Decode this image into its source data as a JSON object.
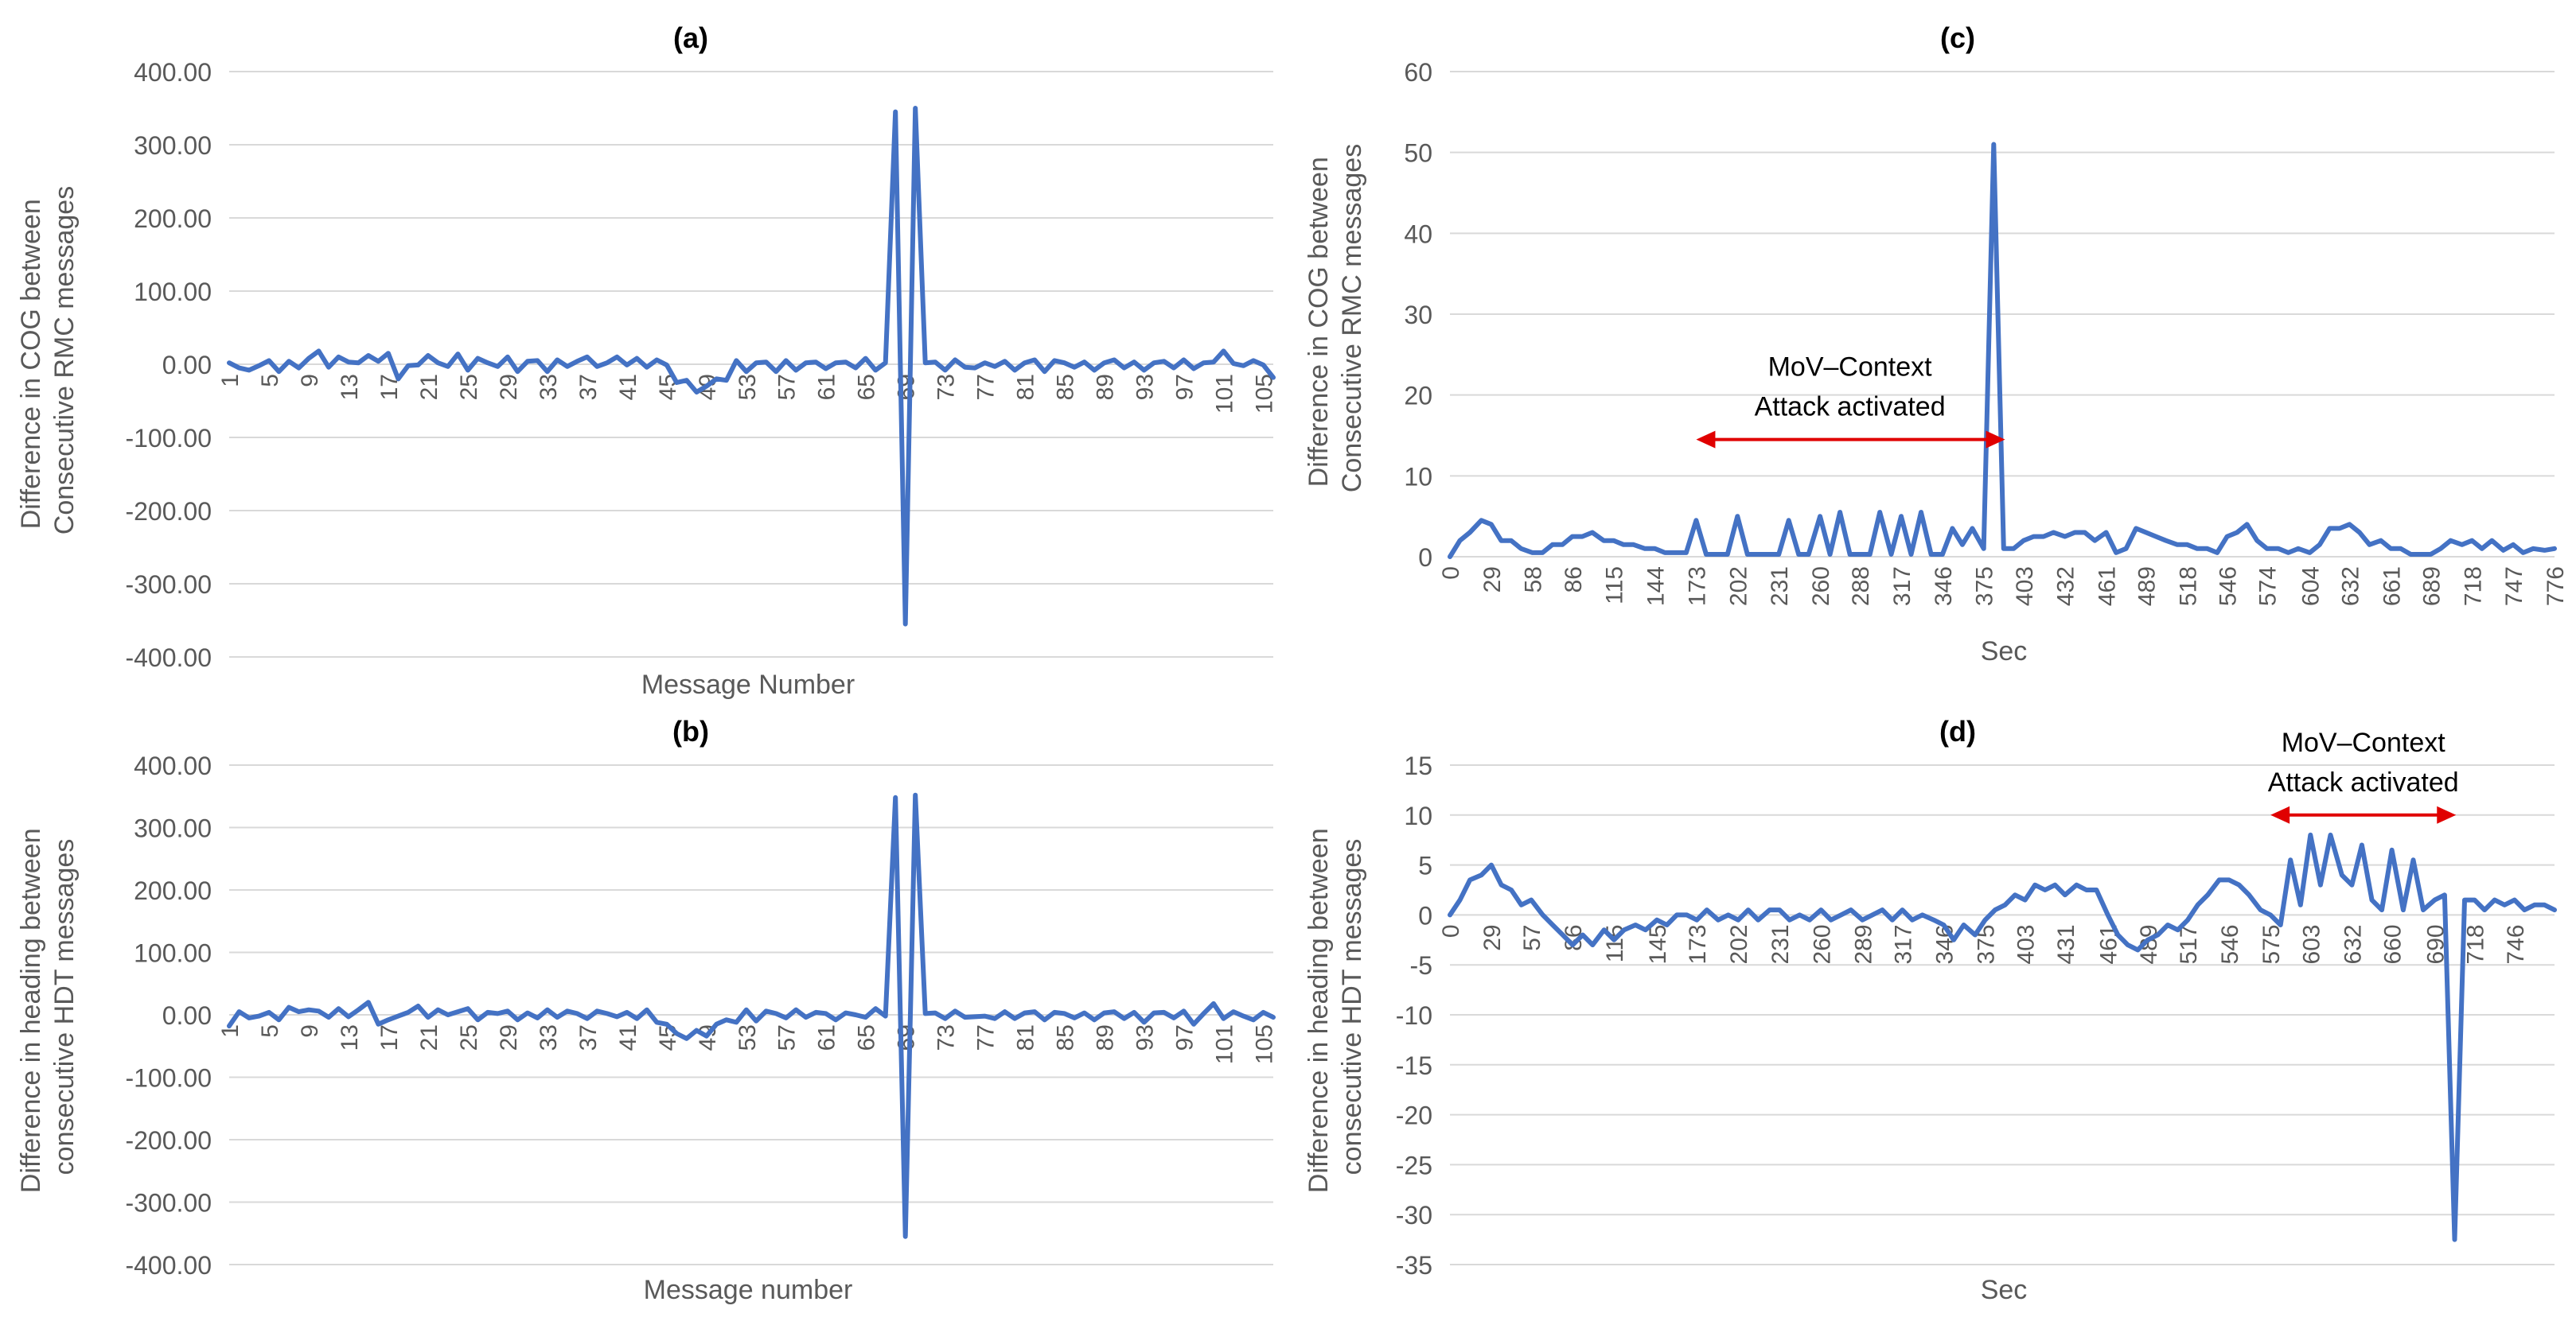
{
  "colors": {
    "series": "#4472C4",
    "grid": "#d9d9d9",
    "arrow": "#e00000",
    "text": "#595959"
  },
  "chart_data": [
    {
      "id": "a",
      "type": "line",
      "title": "(a)",
      "xlabel": "Message Number",
      "ylabel_lines": [
        "Difference in COG between",
        "Consecutive RMC messages"
      ],
      "ylim": [
        -400,
        400
      ],
      "yticks": [
        "400.00",
        "300.00",
        "200.00",
        "100.00",
        "0.00",
        "-100.00",
        "-200.00",
        "-300.00",
        "-400.00"
      ],
      "xticks": [
        "1",
        "5",
        "9",
        "13",
        "17",
        "21",
        "25",
        "29",
        "33",
        "37",
        "41",
        "45",
        "49",
        "53",
        "57",
        "61",
        "65",
        "69",
        "73",
        "77",
        "81",
        "85",
        "89",
        "93",
        "97",
        "101",
        "105"
      ],
      "x": [
        1,
        2,
        3,
        4,
        5,
        6,
        7,
        8,
        9,
        10,
        11,
        12,
        13,
        14,
        15,
        16,
        17,
        18,
        19,
        20,
        21,
        22,
        23,
        24,
        25,
        26,
        27,
        28,
        29,
        30,
        31,
        32,
        33,
        34,
        35,
        36,
        37,
        38,
        39,
        40,
        41,
        42,
        43,
        44,
        45,
        46,
        47,
        48,
        49,
        50,
        51,
        52,
        53,
        54,
        55,
        56,
        57,
        58,
        59,
        60,
        61,
        62,
        63,
        64,
        65,
        66,
        67,
        68,
        69,
        70,
        71,
        72,
        73,
        74,
        75,
        76,
        77,
        78,
        79,
        80,
        81,
        82,
        83,
        84,
        85,
        86,
        87,
        88,
        89,
        90,
        91,
        92,
        93,
        94,
        95,
        96,
        97,
        98,
        99,
        100,
        101,
        102,
        103,
        104,
        105,
        106
      ],
      "values": [
        2,
        -5,
        -8,
        -2,
        5,
        -10,
        4,
        -5,
        8,
        18,
        -4,
        10,
        3,
        2,
        12,
        4,
        15,
        -20,
        -2,
        -1,
        12,
        2,
        -3,
        14,
        -8,
        8,
        2,
        -3,
        10,
        -10,
        4,
        5,
        -10,
        6,
        -3,
        4,
        10,
        -3,
        2,
        10,
        -1,
        8,
        -4,
        6,
        -1,
        -25,
        -22,
        -38,
        -30,
        -20,
        -22,
        5,
        -10,
        2,
        3,
        -10,
        5,
        -8,
        2,
        3,
        -6,
        2,
        3,
        -5,
        8,
        -8,
        2,
        345,
        -355,
        350,
        2,
        3,
        -8,
        6,
        -4,
        -5,
        2,
        -3,
        4,
        -8,
        2,
        6,
        -10,
        5,
        2,
        -4,
        3,
        -8,
        2,
        6,
        -5,
        3,
        -8,
        2,
        4,
        -5,
        6,
        -6,
        2,
        3,
        18,
        1,
        -2,
        5,
        -1,
        -18
      ]
    },
    {
      "id": "b",
      "type": "line",
      "title": "(b)",
      "xlabel": "Message number",
      "ylabel_lines": [
        "Difference in heading between",
        "consecutive HDT messages"
      ],
      "ylim": [
        -400,
        400
      ],
      "yticks": [
        "400.00",
        "300.00",
        "200.00",
        "100.00",
        "0.00",
        "-100.00",
        "-200.00",
        "-300.00",
        "-400.00"
      ],
      "xticks": [
        "1",
        "5",
        "9",
        "13",
        "17",
        "21",
        "25",
        "29",
        "33",
        "37",
        "41",
        "45",
        "49",
        "53",
        "57",
        "61",
        "65",
        "69",
        "73",
        "77",
        "81",
        "85",
        "89",
        "93",
        "97",
        "101",
        "105"
      ],
      "x": [
        1,
        2,
        3,
        4,
        5,
        6,
        7,
        8,
        9,
        10,
        11,
        12,
        13,
        14,
        15,
        16,
        17,
        18,
        19,
        20,
        21,
        22,
        23,
        24,
        25,
        26,
        27,
        28,
        29,
        30,
        31,
        32,
        33,
        34,
        35,
        36,
        37,
        38,
        39,
        40,
        41,
        42,
        43,
        44,
        45,
        46,
        47,
        48,
        49,
        50,
        51,
        52,
        53,
        54,
        55,
        56,
        57,
        58,
        59,
        60,
        61,
        62,
        63,
        64,
        65,
        66,
        67,
        68,
        69,
        70,
        71,
        72,
        73,
        74,
        75,
        76,
        77,
        78,
        79,
        80,
        81,
        82,
        83,
        84,
        85,
        86,
        87,
        88,
        89,
        90,
        91,
        92,
        93,
        94,
        95,
        96,
        97,
        98,
        99,
        100,
        101,
        102,
        103,
        104,
        105,
        106
      ],
      "values": [
        -18,
        5,
        -5,
        -2,
        4,
        -8,
        12,
        5,
        8,
        6,
        -4,
        10,
        -3,
        8,
        20,
        -15,
        -8,
        -2,
        4,
        14,
        -4,
        8,
        0,
        5,
        10,
        -8,
        4,
        2,
        6,
        -8,
        3,
        -5,
        8,
        -4,
        6,
        2,
        -6,
        6,
        2,
        -3,
        4,
        -6,
        8,
        -12,
        -15,
        -30,
        -38,
        -25,
        -34,
        -15,
        -8,
        -12,
        8,
        -10,
        6,
        2,
        -5,
        8,
        -4,
        4,
        2,
        -8,
        3,
        0,
        -4,
        10,
        -2,
        348,
        -355,
        352,
        2,
        3,
        -6,
        6,
        -4,
        -3,
        -2,
        -6,
        5,
        -6,
        3,
        5,
        -8,
        4,
        2,
        -5,
        3,
        -8,
        3,
        5,
        -6,
        4,
        -12,
        3,
        4,
        -5,
        6,
        -15,
        2,
        18,
        -6,
        5,
        -2,
        -8,
        4,
        -4
      ]
    },
    {
      "id": "c",
      "type": "line",
      "title": "(c)",
      "xlabel": "Sec",
      "ylabel_lines": [
        "Difference in COG between",
        "Consecutive RMC messages"
      ],
      "ylim": [
        0,
        60
      ],
      "yticks": [
        "60",
        "50",
        "40",
        "30",
        "20",
        "10",
        "0"
      ],
      "xticks": [
        "0",
        "29",
        "58",
        "86",
        "115",
        "144",
        "173",
        "202",
        "231",
        "260",
        "288",
        "317",
        "346",
        "375",
        "403",
        "432",
        "461",
        "489",
        "518",
        "546",
        "574",
        "604",
        "632",
        "661",
        "689",
        "718",
        "747",
        "776"
      ],
      "x": [
        0,
        7,
        14,
        22,
        29,
        36,
        43,
        50,
        58,
        65,
        72,
        79,
        86,
        93,
        100,
        108,
        115,
        122,
        129,
        137,
        144,
        151,
        158,
        166,
        173,
        180,
        187,
        195,
        202,
        209,
        216,
        224,
        231,
        238,
        245,
        252,
        260,
        267,
        274,
        281,
        288,
        295,
        302,
        310,
        317,
        324,
        331,
        338,
        346,
        353,
        360,
        367,
        375,
        382,
        389,
        396,
        403,
        410,
        417,
        424,
        432,
        439,
        446,
        453,
        461,
        468,
        475,
        482,
        489,
        496,
        503,
        511,
        518,
        525,
        532,
        539,
        546,
        553,
        560,
        567,
        574,
        582,
        589,
        596,
        604,
        611,
        618,
        625,
        632,
        639,
        646,
        654,
        661,
        668,
        675,
        682,
        689,
        696,
        703,
        711,
        718,
        725,
        732,
        740,
        747,
        754,
        761,
        769,
        776
      ],
      "values": [
        0,
        2,
        3,
        4.5,
        4,
        2,
        2,
        1,
        0.5,
        0.5,
        1.5,
        1.5,
        2.5,
        2.5,
        3,
        2,
        2,
        1.5,
        1.5,
        1,
        1,
        0.5,
        0.5,
        0.5,
        4.5,
        0.3,
        0.3,
        0.3,
        5,
        0.3,
        0.3,
        0.3,
        0.3,
        4.5,
        0.3,
        0.3,
        5,
        0.3,
        5.5,
        0.3,
        0.3,
        0.3,
        5.5,
        0.3,
        5,
        0.3,
        5.5,
        0.3,
        0.3,
        3.5,
        1.5,
        3.5,
        1,
        51,
        1,
        1,
        2,
        2.5,
        2.5,
        3,
        2.5,
        3,
        3,
        2,
        3,
        0.5,
        1,
        3.5,
        3,
        2.5,
        2,
        1.5,
        1.5,
        1,
        1,
        0.5,
        2.5,
        3,
        4,
        2,
        1,
        1,
        0.5,
        1,
        0.5,
        1.5,
        3.5,
        3.5,
        4,
        3,
        1.5,
        2,
        1,
        1,
        0.3,
        0.3,
        0.3,
        1,
        2,
        1.5,
        2,
        1,
        2,
        0.8,
        1.5,
        0.5,
        1,
        0.8,
        1
      ]
    },
    {
      "id": "d",
      "type": "line",
      "title": "(d)",
      "xlabel": "Sec",
      "ylabel_lines": [
        "Difference in heading between",
        "consecutive HDT messages"
      ],
      "ylim": [
        -35,
        15
      ],
      "yticks": [
        "15",
        "10",
        "5",
        "0",
        "-5",
        "-10",
        "-15",
        "-20",
        "-25",
        "-30",
        "-35"
      ],
      "xticks": [
        "0",
        "29",
        "57",
        "86",
        "115",
        "145",
        "173",
        "202",
        "231",
        "260",
        "289",
        "317",
        "346",
        "375",
        "403",
        "431",
        "461",
        "489",
        "517",
        "546",
        "575",
        "603",
        "632",
        "660",
        "690",
        "718",
        "746"
      ],
      "x": [
        0,
        7,
        14,
        22,
        29,
        36,
        43,
        50,
        57,
        65,
        72,
        79,
        86,
        93,
        100,
        108,
        115,
        122,
        130,
        137,
        145,
        152,
        159,
        166,
        173,
        180,
        188,
        195,
        202,
        209,
        216,
        224,
        231,
        238,
        245,
        252,
        260,
        267,
        274,
        281,
        289,
        296,
        303,
        310,
        317,
        324,
        331,
        339,
        346,
        353,
        360,
        368,
        375,
        382,
        389,
        396,
        403,
        410,
        417,
        424,
        431,
        439,
        446,
        453,
        461,
        468,
        475,
        482,
        489,
        496,
        503,
        510,
        517,
        524,
        531,
        539,
        546,
        553,
        560,
        568,
        575,
        582,
        589,
        596,
        603,
        610,
        617,
        625,
        632,
        639,
        646,
        653,
        660,
        668,
        675,
        682,
        690,
        697,
        704,
        711,
        718,
        725,
        732,
        739,
        746,
        753,
        760,
        767,
        774
      ],
      "values": [
        0,
        1.5,
        3.5,
        4,
        5,
        3,
        2.5,
        1,
        1.5,
        0,
        -1,
        -2,
        -3,
        -2,
        -3,
        -1.5,
        -2.5,
        -1.5,
        -1,
        -1.5,
        -0.5,
        -1,
        0,
        0,
        -0.5,
        0.5,
        -0.5,
        0,
        -0.5,
        0.5,
        -0.5,
        0.5,
        0.5,
        -0.5,
        0,
        -0.5,
        0.5,
        -0.5,
        0,
        0.5,
        -0.5,
        0,
        0.5,
        -0.5,
        0.5,
        -0.5,
        0,
        -0.5,
        -1,
        -2.5,
        -1,
        -2,
        -0.5,
        0.5,
        1,
        2,
        1.5,
        3,
        2.5,
        3,
        2,
        3,
        2.5,
        2.5,
        0,
        -2,
        -3,
        -3.5,
        -2.5,
        -2,
        -1,
        -1.5,
        -0.5,
        1,
        2,
        3.5,
        3.5,
        3,
        2,
        0.5,
        0,
        -1,
        5.5,
        1,
        8,
        3,
        8,
        4,
        3,
        7,
        1.5,
        0.5,
        6.5,
        0.5,
        5.5,
        0.5,
        1.5,
        2,
        -32.5,
        1.5,
        1.5,
        0.5,
        1.5,
        1,
        1.5,
        0.5,
        1,
        1,
        0.5
      ]
    }
  ],
  "annotations": [
    {
      "chart": "c",
      "lines": [
        "MoV–Context",
        "Attack activated"
      ],
      "arrow_from_x": 173,
      "arrow_to_x": 390,
      "arrow_y": 14.5,
      "text_at_x": 281
    },
    {
      "chart": "d",
      "lines": [
        "MoV–Context",
        "Attack activated"
      ],
      "arrow_from_x": 575,
      "arrow_to_x": 705,
      "arrow_y": 10,
      "text_at_x": 640
    }
  ]
}
